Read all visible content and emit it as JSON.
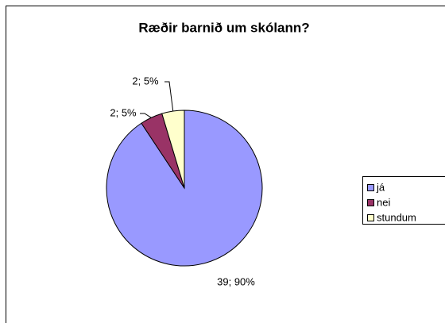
{
  "chart_data": {
    "type": "pie",
    "title": "Ræðir barnið um skólann?",
    "categories": [
      "já",
      "nei",
      "stundum"
    ],
    "values": [
      39,
      2,
      2
    ],
    "value_labels": [
      "39; 90%",
      "2; 5%",
      "2; 5%"
    ],
    "colors": [
      "#9999ff",
      "#993366",
      "#ffffcc"
    ],
    "legend": "right"
  }
}
